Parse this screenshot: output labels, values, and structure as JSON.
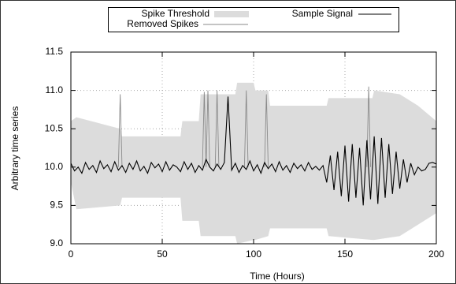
{
  "chart_data": {
    "type": "line",
    "ylabel": "Arbitrary time series",
    "xlabel": "Time (Hours)",
    "xlim": [
      0,
      200
    ],
    "xticks": [
      0,
      50,
      100,
      150,
      200
    ],
    "ylim": [
      9,
      11.5
    ],
    "yticks": [
      {
        "value": 9,
        "label": "9.0"
      },
      {
        "value": 9.5,
        "label": "9.5"
      },
      {
        "value": 10,
        "label": "10.0"
      },
      {
        "value": 10.5,
        "label": "10.5"
      },
      {
        "value": 11,
        "label": "11.0"
      },
      {
        "value": 11.5,
        "label": "11.5"
      }
    ],
    "grid": true,
    "legend": "top",
    "series": [
      {
        "name": "Spike Threshold",
        "kind": "band",
        "color": "#dcdcdc",
        "x": [
          0,
          3,
          27,
          28,
          60,
          61,
          70,
          71,
          90,
          91,
          100,
          101,
          108,
          109,
          140,
          141,
          165,
          166,
          180,
          190,
          200
        ],
        "upper": [
          10.6,
          10.65,
          10.5,
          10.4,
          10.4,
          10.6,
          10.6,
          10.95,
          10.95,
          11.1,
          11.1,
          11.0,
          11.0,
          10.8,
          10.8,
          10.9,
          10.9,
          11.0,
          10.95,
          10.8,
          10.6
        ],
        "lower": [
          9.8,
          9.45,
          9.5,
          9.6,
          9.6,
          9.3,
          9.3,
          9.1,
          9.1,
          9.0,
          9.05,
          9.05,
          9.1,
          9.2,
          9.2,
          9.1,
          9.05,
          9.05,
          9.1,
          9.25,
          9.4
        ]
      },
      {
        "name": "Sample Signal",
        "kind": "line",
        "color": "#000000",
        "x": [
          0,
          2,
          4,
          6,
          8,
          10,
          12,
          14,
          16,
          18,
          20,
          22,
          24,
          26,
          28,
          30,
          32,
          34,
          36,
          38,
          40,
          42,
          44,
          46,
          48,
          50,
          52,
          54,
          56,
          58,
          60,
          62,
          64,
          66,
          68,
          70,
          72,
          74,
          76,
          78,
          80,
          82,
          84,
          86,
          88,
          90,
          92,
          94,
          96,
          98,
          100,
          102,
          104,
          106,
          108,
          110,
          112,
          114,
          116,
          118,
          120,
          122,
          124,
          126,
          128,
          130,
          132,
          134,
          136,
          138,
          140,
          142,
          144,
          146,
          148,
          150,
          152,
          154,
          156,
          158,
          160,
          162,
          164,
          166,
          168,
          170,
          172,
          174,
          176,
          178,
          180,
          182,
          184,
          186,
          188,
          190,
          192,
          194,
          196,
          198,
          200
        ],
        "values": [
          10.05,
          9.95,
          10.0,
          9.92,
          10.06,
          9.97,
          10.02,
          9.93,
          10.08,
          9.98,
          10.03,
          9.94,
          10.07,
          9.96,
          10.02,
          9.93,
          10.05,
          9.97,
          10.08,
          9.95,
          10.01,
          9.92,
          10.06,
          9.99,
          10.04,
          9.94,
          10.07,
          9.96,
          10.03,
          10.0,
          9.94,
          10.07,
          9.97,
          10.05,
          9.93,
          10.02,
          9.96,
          10.1,
          10.0,
          9.95,
          10.04,
          9.97,
          10.06,
          10.92,
          9.96,
          10.05,
          9.93,
          10.02,
          9.97,
          10.08,
          9.95,
          10.03,
          9.92,
          10.06,
          9.98,
          10.04,
          9.94,
          10.07,
          9.96,
          10.02,
          9.93,
          10.05,
          9.98,
          10.03,
          9.95,
          10.06,
          9.97,
          10.01,
          9.96,
          10.02,
          9.8,
          10.15,
          9.7,
          10.2,
          9.62,
          10.28,
          9.55,
          10.3,
          9.6,
          10.25,
          9.5,
          10.35,
          9.58,
          10.4,
          9.52,
          10.38,
          9.6,
          10.3,
          9.65,
          10.2,
          9.72,
          10.1,
          9.8,
          10.05,
          9.9,
          10.0,
          9.95,
          9.97,
          10.05,
          10.06,
          10.04
        ]
      },
      {
        "name": "Removed Spikes",
        "kind": "line",
        "color": "#8a8a8a",
        "x": [
          26,
          27,
          28,
          null,
          72,
          73,
          74,
          null,
          74,
          75,
          76,
          null,
          79,
          80,
          81,
          null,
          95,
          96,
          97,
          null,
          106,
          107,
          108,
          null,
          162,
          163,
          164
        ],
        "values": [
          10.0,
          10.95,
          10.0,
          null,
          10.0,
          10.98,
          10.0,
          null,
          10.0,
          11.0,
          10.0,
          null,
          10.0,
          11.0,
          10.0,
          null,
          10.0,
          11.0,
          10.0,
          null,
          10.0,
          10.95,
          10.0,
          null,
          10.0,
          11.05,
          10.0
        ]
      }
    ]
  }
}
